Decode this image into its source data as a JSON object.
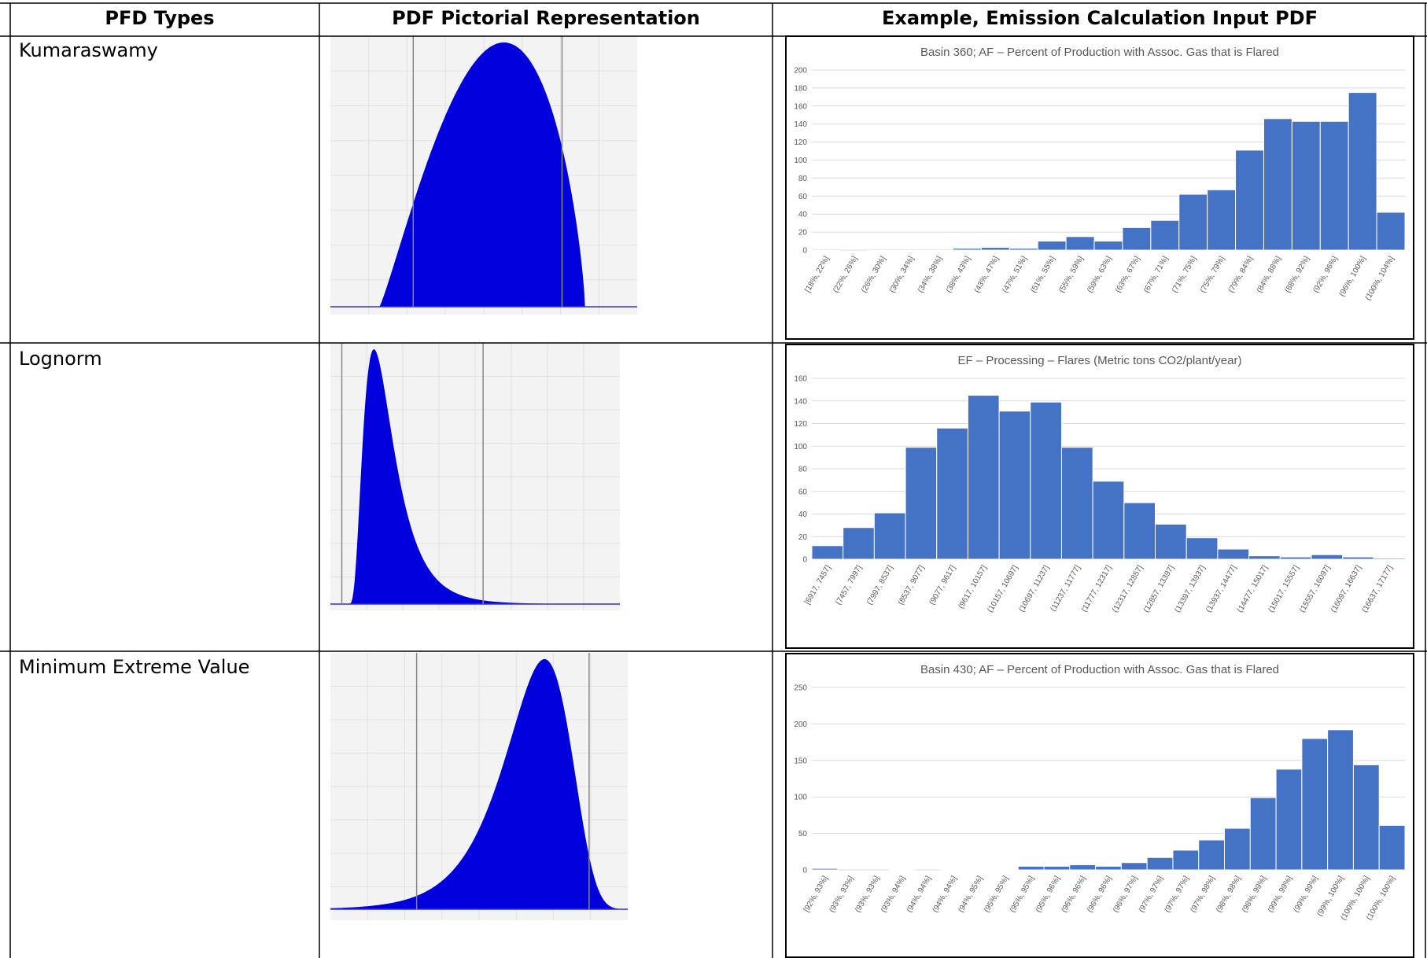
{
  "table": {
    "headers": [
      "PFD Types",
      "PDF Pictorial Representation",
      "Example, Emission Calculation Input PDF"
    ],
    "rows": [
      {
        "type": "Kumaraswamy"
      },
      {
        "type": "Lognorm"
      },
      {
        "type": "Minimum Extreme Value"
      }
    ]
  },
  "colors": {
    "pictorial_fill": "#0000dd",
    "pictorial_bg": "#f3f3f3",
    "bar": "#4472c4",
    "grid": "#d9d9d9",
    "axis_text": "#595959"
  },
  "pictorial": [
    {
      "shape": "kumaraswamy-icon"
    },
    {
      "shape": "lognormal-icon"
    },
    {
      "shape": "minimum-extreme-value-icon"
    }
  ],
  "chart_data": [
    {
      "type": "bar",
      "title": "Basin 360; AF – Percent of Production with Assoc. Gas that is Flared",
      "xlabel": "",
      "ylabel": "",
      "ylim": [
        0,
        200
      ],
      "yticks": [
        0,
        20,
        40,
        60,
        80,
        100,
        120,
        140,
        160,
        180,
        200
      ],
      "grid": true,
      "categories": [
        "[18%, 22%]",
        "(22%, 26%]",
        "(26%, 30%]",
        "(30%, 34%]",
        "(34%, 38%]",
        "(38%, 43%]",
        "(43%, 47%]",
        "(47%, 51%]",
        "(51%, 55%]",
        "(55%, 59%]",
        "(59%, 63%]",
        "(63%, 67%]",
        "(67%, 71%]",
        "(71%, 75%]",
        "(75%, 79%]",
        "(79%, 84%]",
        "(84%, 88%]",
        "(88%, 92%]",
        "(92%, 96%]",
        "(96%, 100%]",
        "(100%, 104%]"
      ],
      "values": [
        1,
        0,
        1,
        1,
        1,
        2,
        3,
        2,
        10,
        15,
        10,
        25,
        33,
        62,
        67,
        111,
        146,
        143,
        143,
        175,
        42
      ]
    },
    {
      "type": "bar",
      "title": "EF – Processing – Flares (Metric tons CO2/plant/year)",
      "xlabel": "",
      "ylabel": "",
      "ylim": [
        0,
        160
      ],
      "yticks": [
        0,
        20,
        40,
        60,
        80,
        100,
        120,
        140,
        160
      ],
      "grid": true,
      "categories": [
        "[6917, 7457]",
        "(7457, 7997]",
        "(7997, 8537]",
        "(8537, 9077]",
        "(9077, 9617]",
        "(9617, 10157]",
        "(10157, 10697]",
        "(10697, 11237]",
        "(11237, 11777]",
        "(11777, 12317]",
        "(12317, 12857]",
        "(12857, 13397]",
        "(13397, 13937]",
        "(13937, 14477]",
        "(14477, 15017]",
        "(15017, 15557]",
        "(15557, 16097]",
        "(16097, 16637]",
        "(16637, 17177]"
      ],
      "values": [
        12,
        28,
        41,
        99,
        116,
        145,
        131,
        139,
        99,
        69,
        50,
        31,
        19,
        9,
        3,
        2,
        4,
        2,
        1
      ]
    },
    {
      "type": "bar",
      "title": "Basin 430; AF – Percent of Production with Assoc. Gas that is Flared",
      "xlabel": "",
      "ylabel": "",
      "ylim": [
        0,
        250
      ],
      "yticks": [
        0,
        50,
        100,
        150,
        200,
        250
      ],
      "grid": true,
      "categories": [
        "[92%, 93%]",
        "(93%, 93%]",
        "(93%, 93%]",
        "(93%, 94%]",
        "(94%, 94%]",
        "(94%, 94%]",
        "(94%, 95%]",
        "(95%, 95%]",
        "(95%, 95%]",
        "(95%, 96%]",
        "(96%, 96%]",
        "(96%, 96%]",
        "(96%, 97%]",
        "(97%, 97%]",
        "(97%, 97%]",
        "(97%, 98%]",
        "(98%, 98%]",
        "(98%, 99%]",
        "(99%, 99%]",
        "(99%, 99%]",
        "(99%, 100%]",
        "(100%, 100%]",
        "(100%, 100%]"
      ],
      "values": [
        2,
        0,
        0,
        1,
        0,
        1,
        1,
        1,
        5,
        5,
        7,
        5,
        10,
        17,
        27,
        41,
        57,
        99,
        138,
        180,
        192,
        144,
        61
      ]
    }
  ]
}
